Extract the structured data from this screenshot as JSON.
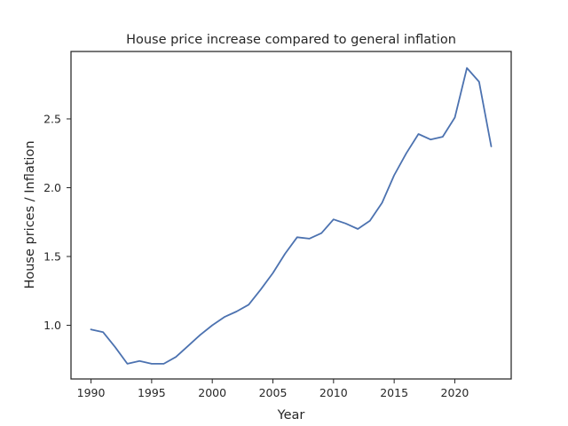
{
  "chart_data": {
    "type": "line",
    "title": "House price increase compared to general inflation",
    "xlabel": "Year",
    "ylabel": "House prices / Inflation",
    "xlim": [
      1988.35,
      2024.65
    ],
    "ylim": [
      0.61,
      2.99
    ],
    "xticks": [
      1990,
      1995,
      2000,
      2005,
      2010,
      2015,
      2020
    ],
    "yticks": [
      1.0,
      1.5,
      2.0,
      2.5
    ],
    "xtick_labels": [
      "1990",
      "1995",
      "2000",
      "2005",
      "2010",
      "2015",
      "2020"
    ],
    "ytick_labels": [
      "1.0",
      "1.5",
      "2.0",
      "2.5"
    ],
    "grid": false,
    "series": [
      {
        "color": "#4c72b0",
        "x": [
          1990,
          1991,
          1992,
          1993,
          1994,
          1995,
          1996,
          1997,
          1998,
          1999,
          2000,
          2001,
          2002,
          2003,
          2004,
          2005,
          2006,
          2007,
          2008,
          2009,
          2010,
          2011,
          2012,
          2013,
          2014,
          2015,
          2016,
          2017,
          2018,
          2019,
          2020,
          2021,
          2022,
          2023
        ],
        "y": [
          0.97,
          0.95,
          0.84,
          0.72,
          0.74,
          0.72,
          0.72,
          0.77,
          0.85,
          0.93,
          1.0,
          1.06,
          1.1,
          1.15,
          1.26,
          1.38,
          1.52,
          1.64,
          1.63,
          1.67,
          1.77,
          1.74,
          1.7,
          1.76,
          1.89,
          2.09,
          2.25,
          2.39,
          2.35,
          2.37,
          2.51,
          2.87,
          2.77,
          2.3
        ]
      }
    ]
  }
}
